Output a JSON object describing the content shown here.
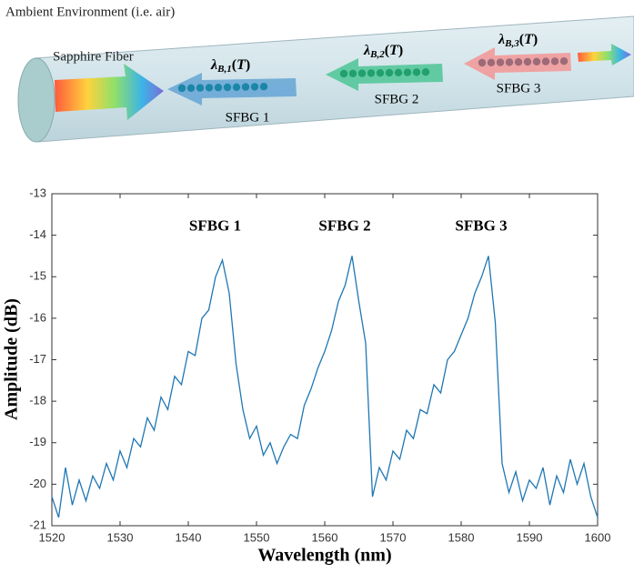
{
  "diagram": {
    "environment_label": "Ambient Environment (i.e. air)",
    "fiber_label": "Sapphire Fiber",
    "gratings": [
      {
        "name": "SFBG 1",
        "symbol": "λ",
        "subscript": "B,1",
        "open": "(",
        "argument": "T",
        "close": ")"
      },
      {
        "name": "SFBG 2",
        "symbol": "λ",
        "subscript": "B,2",
        "open": "(",
        "argument": "T",
        "close": ")"
      },
      {
        "name": "SFBG 3",
        "symbol": "λ",
        "subscript": "B,3",
        "open": "(",
        "argument": "T",
        "close": ")"
      }
    ]
  },
  "chart_data": {
    "type": "line",
    "x_label": "Wavelength (nm)",
    "y_label": "Amplitude (dB)",
    "annotations": [
      {
        "text": "SFBG 1",
        "x": 1545,
        "y": -14.2
      },
      {
        "text": "SFBG 2",
        "x": 1564,
        "y": -14.2
      },
      {
        "text": "SFBG 3",
        "x": 1584,
        "y": -14.2
      }
    ],
    "xlim": [
      1520,
      1600
    ],
    "xticks": [
      1520,
      1530,
      1540,
      1550,
      1560,
      1570,
      1580,
      1590,
      1600
    ],
    "ylim": [
      -21,
      -13
    ],
    "yticks": [
      -21,
      -20,
      -19,
      -18,
      -17,
      -16,
      -15,
      -14,
      -13
    ],
    "x": [
      1520,
      1521,
      1522,
      1523,
      1524,
      1525,
      1526,
      1527,
      1528,
      1529,
      1530,
      1531,
      1532,
      1533,
      1534,
      1535,
      1536,
      1537,
      1538,
      1539,
      1540,
      1541,
      1542,
      1543,
      1544,
      1545,
      1546,
      1547,
      1548,
      1549,
      1550,
      1551,
      1552,
      1553,
      1554,
      1555,
      1556,
      1557,
      1558,
      1559,
      1560,
      1561,
      1562,
      1563,
      1564,
      1565,
      1566,
      1567,
      1568,
      1569,
      1570,
      1571,
      1572,
      1573,
      1574,
      1575,
      1576,
      1577,
      1578,
      1579,
      1580,
      1581,
      1582,
      1583,
      1584,
      1585,
      1586,
      1587,
      1588,
      1589,
      1590,
      1591,
      1592,
      1593,
      1594,
      1595,
      1596,
      1597,
      1598,
      1599,
      1600
    ],
    "series": [
      {
        "color": "#1f77b4",
        "values": [
          -20.3,
          -20.8,
          -19.6,
          -20.5,
          -19.9,
          -20.4,
          -19.8,
          -20.1,
          -19.5,
          -19.9,
          -19.2,
          -19.6,
          -18.9,
          -19.1,
          -18.4,
          -18.7,
          -17.9,
          -18.2,
          -17.4,
          -17.6,
          -16.8,
          -16.9,
          -16.0,
          -15.8,
          -15.0,
          -14.6,
          -15.4,
          -17.1,
          -18.2,
          -18.9,
          -18.6,
          -19.3,
          -19.0,
          -19.5,
          -19.1,
          -18.8,
          -18.9,
          -18.1,
          -17.7,
          -17.2,
          -16.8,
          -16.3,
          -15.6,
          -15.2,
          -14.5,
          -15.6,
          -16.6,
          -20.3,
          -19.6,
          -19.9,
          -19.2,
          -19.4,
          -18.7,
          -18.9,
          -18.2,
          -18.3,
          -17.6,
          -17.8,
          -17.0,
          -16.8,
          -16.4,
          -16.0,
          -15.4,
          -15.0,
          -14.5,
          -16.1,
          -19.5,
          -20.2,
          -19.7,
          -20.4,
          -19.9,
          -20.1,
          -19.6,
          -20.5,
          -19.8,
          -20.2,
          -19.4,
          -20.0,
          -19.5,
          -20.3,
          -20.8
        ]
      }
    ]
  }
}
